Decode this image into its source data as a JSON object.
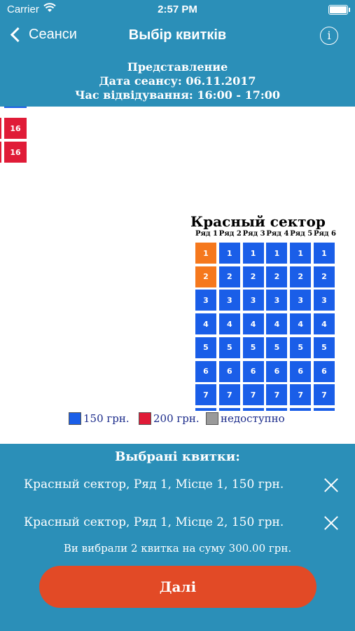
{
  "status": {
    "carrier": "Carrier",
    "time": "2:57 PM"
  },
  "nav": {
    "back_label": "Сеанси",
    "title": "Выбір квитків",
    "info_label": "i"
  },
  "session": {
    "line1": "Представление",
    "line2": "Дата сеансу: 06.11.2017",
    "line3": "Час відвідування: 16:00 - 17:00"
  },
  "left_seats": [
    "16",
    "16"
  ],
  "sector": {
    "title": "Красный сектор",
    "rows": [
      "Ряд 1",
      "Ряд 2",
      "Ряд 3",
      "Ряд 4",
      "Ряд 5",
      "Ряд 6"
    ],
    "seat_numbers": [
      "1",
      "2",
      "3",
      "4",
      "5",
      "6",
      "7"
    ],
    "selected": [
      [
        0,
        0
      ],
      [
        0,
        1
      ]
    ]
  },
  "legend": {
    "price1": "150 грн.",
    "price2": "200 грн.",
    "unavailable": "недоступно"
  },
  "colors": {
    "primary": "#2b8fb8",
    "seat_150": "#1a5ee8",
    "seat_200": "#e01b37",
    "selected": "#f5781d",
    "unavailable": "#9a9a9a",
    "button": "#e24a26"
  },
  "selected_tickets": {
    "heading": "Выбрані квитки:",
    "items": [
      "Красный сектор, Ряд 1, Місце 1,  150 грн.",
      "Красный сектор, Ряд 1, Місце 2,  150 грн."
    ],
    "summary": "Ви вибрали 2 квитка на суму 300.00 грн."
  },
  "next_button": "Далі"
}
